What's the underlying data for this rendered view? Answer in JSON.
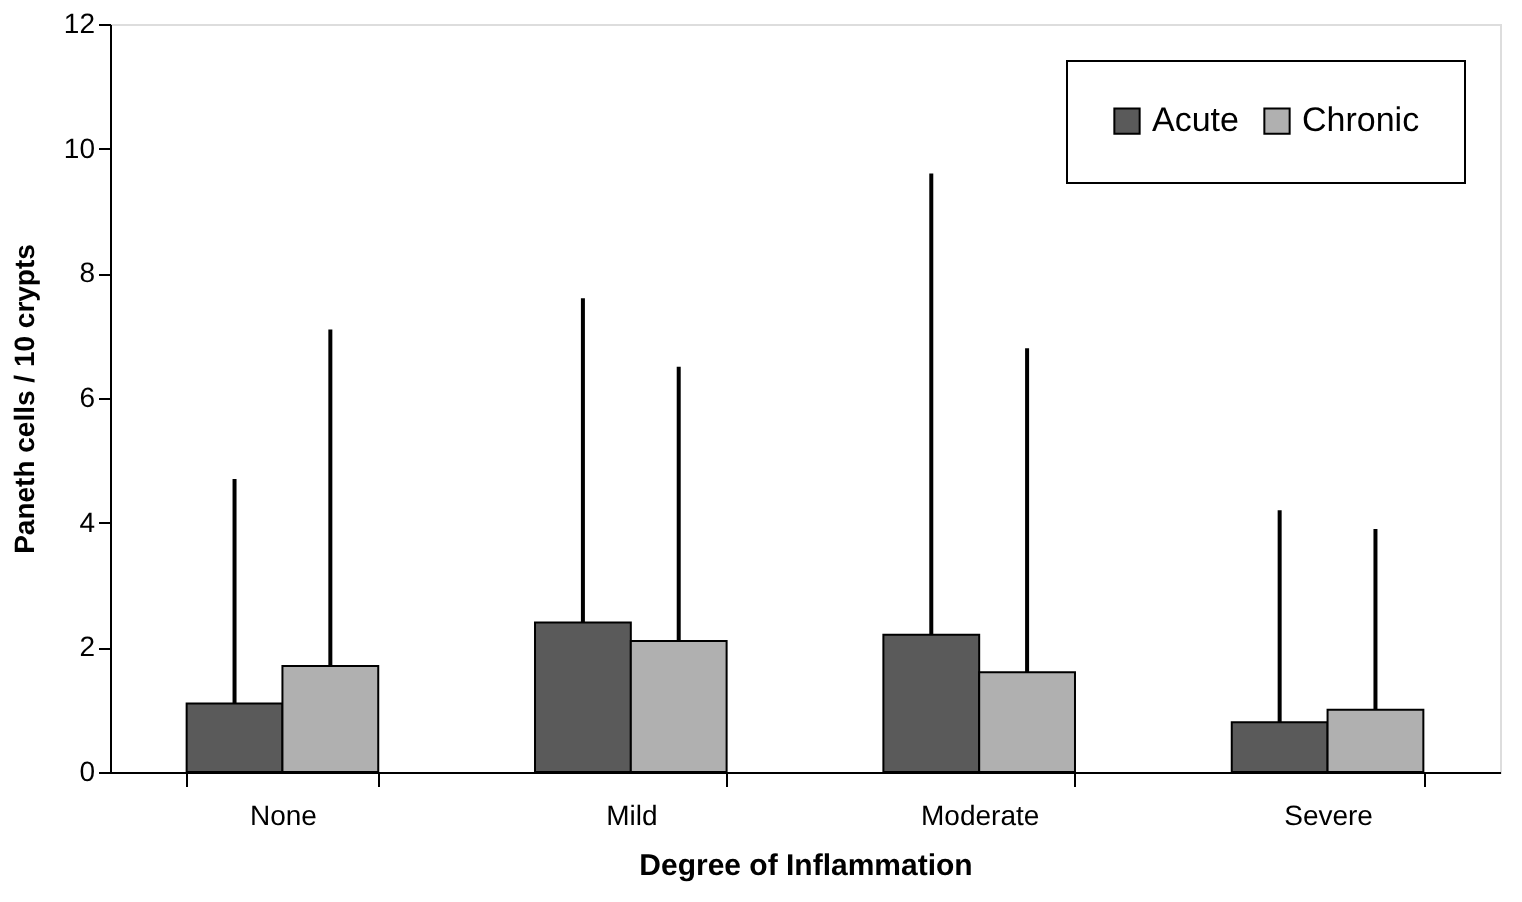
{
  "chart_data": {
    "type": "bar",
    "xlabel": "Degree of Inflammation",
    "ylabel": "Paneth cells / 10 crypts",
    "categories": [
      "None",
      "Mild",
      "Moderate",
      "Severe"
    ],
    "series": [
      {
        "name": "Acute",
        "color": "#5a5a5a",
        "values": [
          1.1,
          2.4,
          2.2,
          0.8
        ],
        "errors": [
          [
            1.1,
            4.7
          ],
          [
            2.4,
            7.6
          ],
          [
            2.2,
            9.6
          ],
          [
            0.8,
            4.2
          ]
        ]
      },
      {
        "name": "Chronic",
        "color": "#b0b0b0",
        "values": [
          1.7,
          2.1,
          1.6,
          1.0
        ],
        "errors": [
          [
            1.7,
            7.1
          ],
          [
            2.1,
            6.5
          ],
          [
            1.6,
            6.8
          ],
          [
            1.0,
            3.9
          ]
        ]
      }
    ],
    "ylim": [
      0,
      12
    ],
    "yticks": [
      0,
      2,
      4,
      6,
      8,
      10,
      12
    ],
    "grid": false,
    "legend": "top right"
  }
}
